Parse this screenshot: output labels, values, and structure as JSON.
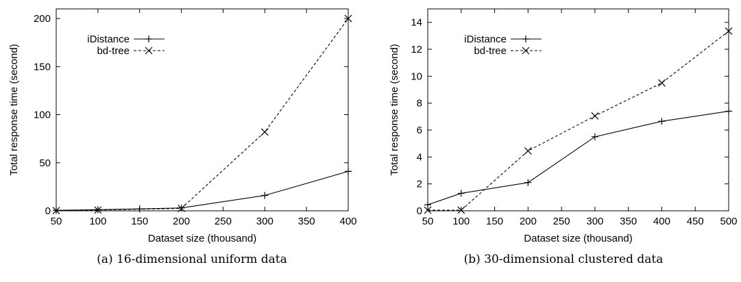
{
  "chart_data": [
    {
      "type": "line",
      "caption": "(a) 16-dimensional uniform data",
      "xlabel": "Dataset size (thousand)",
      "ylabel": "Total response time (second)",
      "xlim": [
        50,
        400
      ],
      "ylim": [
        0,
        210
      ],
      "xticks": [
        50,
        100,
        150,
        200,
        250,
        300,
        350,
        400
      ],
      "yticks": [
        0,
        50,
        100,
        150,
        200
      ],
      "legend": "top-left",
      "grid": false,
      "series": [
        {
          "name": "iDistance",
          "style": "solid",
          "marker": "plus",
          "x": [
            50,
            100,
            150,
            200,
            300,
            400
          ],
          "y": [
            0.5,
            1.2,
            2.0,
            3.0,
            16.0,
            41.0
          ]
        },
        {
          "name": "bd-tree",
          "style": "dashed",
          "marker": "x",
          "x": [
            50,
            100,
            200,
            300,
            400
          ],
          "y": [
            0.2,
            0.8,
            2.5,
            82.0,
            200.0
          ]
        }
      ]
    },
    {
      "type": "line",
      "caption": "(b) 30-dimensional clustered data",
      "xlabel": "Dataset size (thousand)",
      "ylabel": "Total response time (second)",
      "xlim": [
        50,
        500
      ],
      "ylim": [
        0,
        15
      ],
      "xticks": [
        50,
        100,
        150,
        200,
        250,
        300,
        350,
        400,
        450,
        500
      ],
      "yticks": [
        0,
        2,
        4,
        6,
        8,
        10,
        12,
        14
      ],
      "legend": "top-left",
      "grid": false,
      "series": [
        {
          "name": "iDistance",
          "style": "solid",
          "marker": "plus",
          "x": [
            50,
            100,
            200,
            300,
            400,
            500
          ],
          "y": [
            0.45,
            1.3,
            2.1,
            5.5,
            6.65,
            7.4
          ]
        },
        {
          "name": "bd-tree",
          "style": "dashed",
          "marker": "x",
          "x": [
            50,
            100,
            200,
            300,
            400,
            500
          ],
          "y": [
            0.05,
            0.05,
            4.45,
            7.05,
            9.5,
            13.35
          ]
        }
      ]
    }
  ]
}
